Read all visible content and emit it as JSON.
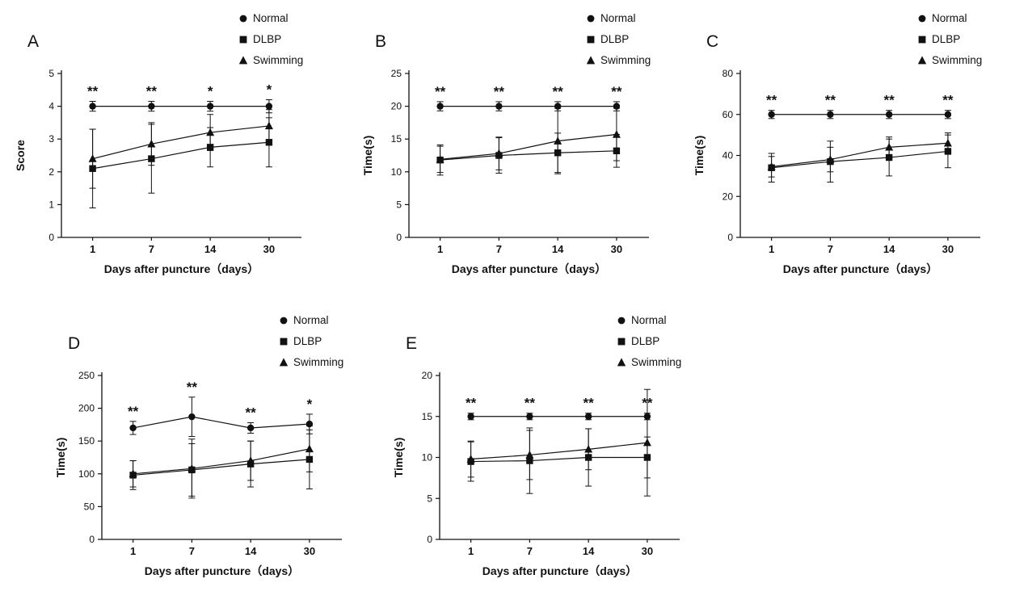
{
  "page": {
    "background": "#ffffff",
    "ink_color": "#111111"
  },
  "chart_data": [
    {
      "type": "line",
      "panel": "A",
      "xlabel": "Days after puncture（days）",
      "ylabel": "Score",
      "ylim": [
        0,
        5
      ],
      "ytick": 1,
      "grid": false,
      "legend_position": "top-right",
      "categories": [
        "1",
        "7",
        "14",
        "30"
      ],
      "series": [
        {
          "name": "Normal",
          "marker": "circle",
          "values": [
            4,
            4,
            4,
            4
          ],
          "errors": [
            0.15,
            0.15,
            0.15,
            0.2
          ]
        },
        {
          "name": "DLBP",
          "marker": "square",
          "values": [
            2.1,
            2.4,
            2.75,
            2.9
          ],
          "errors": [
            1.2,
            1.05,
            0.6,
            0.75
          ]
        },
        {
          "name": "Swimming",
          "marker": "triangle",
          "values": [
            2.4,
            2.85,
            3.2,
            3.4
          ],
          "errors": [
            0.9,
            0.65,
            0.55,
            0.5
          ]
        }
      ],
      "significance": [
        "**",
        "**",
        "*",
        "*"
      ]
    },
    {
      "type": "line",
      "panel": "B",
      "xlabel": "Days after puncture（days）",
      "ylabel": "Time(s)",
      "ylim": [
        0,
        25
      ],
      "ytick": 5,
      "grid": false,
      "legend_position": "top-right",
      "categories": [
        "1",
        "7",
        "14",
        "30"
      ],
      "series": [
        {
          "name": "Normal",
          "marker": "circle",
          "values": [
            20,
            20,
            20,
            20
          ],
          "errors": [
            0.7,
            0.7,
            0.7,
            0.7
          ]
        },
        {
          "name": "DLBP",
          "marker": "square",
          "values": [
            11.8,
            12.5,
            12.9,
            13.2
          ],
          "errors": [
            2.3,
            2.7,
            3.0,
            2.5
          ]
        },
        {
          "name": "Swimming",
          "marker": "triangle",
          "values": [
            11.9,
            12.8,
            14.7,
            15.7
          ],
          "errors": [
            2.0,
            2.5,
            5.0,
            4.0
          ]
        }
      ],
      "significance": [
        "**",
        "**",
        "**",
        "**"
      ]
    },
    {
      "type": "line",
      "panel": "C",
      "xlabel": "Days after puncture（days）",
      "ylabel": "Time(s)",
      "ylim": [
        0,
        80
      ],
      "ytick": 20,
      "grid": false,
      "legend_position": "top-right",
      "categories": [
        "1",
        "7",
        "14",
        "30"
      ],
      "series": [
        {
          "name": "Normal",
          "marker": "circle",
          "values": [
            60,
            60,
            60,
            60
          ],
          "errors": [
            2,
            2,
            2,
            2
          ]
        },
        {
          "name": "DLBP",
          "marker": "square",
          "values": [
            34,
            37,
            39,
            42
          ],
          "errors": [
            7,
            10,
            9,
            8
          ]
        },
        {
          "name": "Swimming",
          "marker": "triangle",
          "values": [
            34.5,
            38,
            44,
            46
          ],
          "errors": [
            5,
            6,
            5,
            5
          ]
        }
      ],
      "significance": [
        "**",
        "**",
        "**",
        "**"
      ]
    },
    {
      "type": "line",
      "panel": "D",
      "xlabel": "Days after puncture（days）",
      "ylabel": "Time(s)",
      "ylim": [
        0,
        250
      ],
      "ytick": 50,
      "grid": false,
      "legend_position": "top-right",
      "categories": [
        "1",
        "7",
        "14",
        "30"
      ],
      "series": [
        {
          "name": "Normal",
          "marker": "circle",
          "values": [
            170,
            187,
            170,
            176
          ],
          "errors": [
            10,
            30,
            8,
            15
          ]
        },
        {
          "name": "DLBP",
          "marker": "square",
          "values": [
            98,
            106,
            115,
            122
          ],
          "errors": [
            22,
            40,
            35,
            45
          ]
        },
        {
          "name": "Swimming",
          "marker": "triangle",
          "values": [
            100,
            108,
            120,
            138
          ],
          "errors": [
            20,
            45,
            30,
            35
          ]
        }
      ],
      "significance": [
        "**",
        "**",
        "**",
        "*"
      ]
    },
    {
      "type": "line",
      "panel": "E",
      "xlabel": "Days after puncture（days）",
      "ylabel": "Time(s)",
      "ylim": [
        0,
        20
      ],
      "ytick": 5,
      "grid": false,
      "legend_position": "top-right",
      "categories": [
        "1",
        "7",
        "14",
        "30"
      ],
      "series": [
        {
          "name": "Normal",
          "marker": "circle",
          "values": [
            15,
            15,
            15,
            15
          ],
          "errors": [
            0.4,
            0.4,
            0.4,
            0.4
          ]
        },
        {
          "name": "DLBP",
          "marker": "square",
          "values": [
            9.5,
            9.6,
            10.0,
            10.0
          ],
          "errors": [
            2.4,
            4.0,
            3.5,
            2.5
          ]
        },
        {
          "name": "Swimming",
          "marker": "triangle",
          "values": [
            9.8,
            10.3,
            11.0,
            11.8
          ],
          "errors": [
            2.2,
            3.0,
            2.5,
            6.5
          ]
        }
      ],
      "significance": [
        "**",
        "**",
        "**",
        "**"
      ]
    }
  ]
}
